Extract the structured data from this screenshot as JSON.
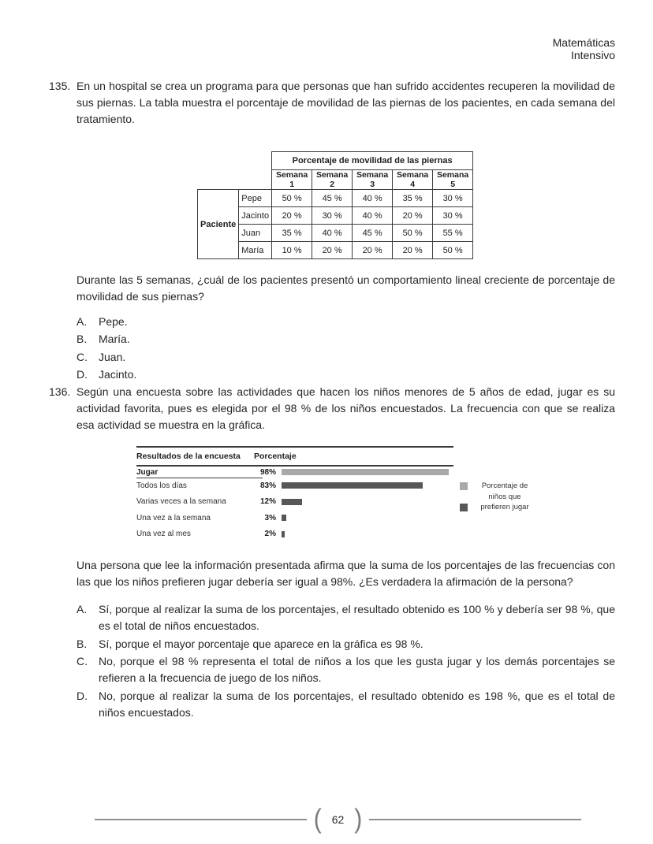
{
  "header": {
    "line1": "Matemáticas",
    "line2": "Intensivo"
  },
  "q135": {
    "number": "135.",
    "intro": "En un hospital se crea un programa para que personas que han sufrido accidentes recuperen la movilidad de sus piernas. La tabla muestra el porcentaje de movilidad de las piernas de los pacientes, en cada semana del tratamiento.",
    "table": {
      "title": "Porcentaje de movilidad de las piernas",
      "row_header": "Paciente",
      "columns": [
        "Semana 1",
        "Semana 2",
        "Semana 3",
        "Semana 4",
        "Semana 5"
      ],
      "rows": [
        {
          "name": "Pepe",
          "values": [
            "50 %",
            "45 %",
            "40 %",
            "35 %",
            "30 %"
          ]
        },
        {
          "name": "Jacinto",
          "values": [
            "20 %",
            "30 %",
            "40 %",
            "20 %",
            "30 %"
          ]
        },
        {
          "name": "Juan",
          "values": [
            "35 %",
            "40 %",
            "45 %",
            "50 %",
            "55 %"
          ]
        },
        {
          "name": "María",
          "values": [
            "10 %",
            "20 %",
            "20 %",
            "20 %",
            "50 %"
          ]
        }
      ]
    },
    "prompt": "Durante las 5 semanas, ¿cuál de los pacientes presentó un comportamiento lineal creciente de porcentaje de movilidad de sus piernas?",
    "options": [
      {
        "letter": "A.",
        "text": "Pepe."
      },
      {
        "letter": "B.",
        "text": "María."
      },
      {
        "letter": "C.",
        "text": "Juan."
      },
      {
        "letter": "D.",
        "text": "Jacinto."
      }
    ]
  },
  "q136": {
    "number": "136.",
    "intro": "Según una encuesta sobre las actividades que hacen los niños menores de 5 años de edad, jugar es su actividad favorita, pues es elegida por el 98 % de los niños encuestados. La frecuencia con que se realiza esa actividad se muestra en la gráfica.",
    "prompt": "Una persona que lee la información presentada afirma que la suma de los porcentajes de las frecuencias con las que los niños prefieren jugar debería ser igual a 98%. ¿Es verdadera la afirmación de la persona?",
    "options": [
      {
        "letter": "A.",
        "text": "Sí, porque al realizar la suma de los porcentajes, el resultado obtenido es 100 % y debería ser 98 %, que es el total de niños encuestados."
      },
      {
        "letter": "B.",
        "text": "Sí, porque el mayor porcentaje que aparece en la gráfica es 98 %."
      },
      {
        "letter": "C.",
        "text": "No, porque el 98 % representa el total de niños a los que les gusta jugar y los demás porcentajes se refieren a la frecuencia de juego de los niños."
      },
      {
        "letter": "D.",
        "text": "No, porque al realizar la suma de los porcentajes, el resultado obtenido es 198 %, que es el total de niños encuestados."
      }
    ]
  },
  "chart_data": {
    "type": "bar",
    "orientation": "horizontal",
    "col1_header": "Resultados de la encuesta",
    "col2_header": "Porcentaje",
    "categories": [
      "Jugar",
      "Todos los días",
      "Varias veces a la semana",
      "Una vez a la semana",
      "Una vez al mes"
    ],
    "values": [
      98,
      83,
      12,
      3,
      2
    ],
    "value_labels": [
      "98%",
      "83%",
      "12%",
      "3%",
      "2%"
    ],
    "bar_colors": [
      "#a9a9a9",
      "#575757",
      "#575757",
      "#575757",
      "#575757"
    ],
    "xlim": [
      0,
      100
    ],
    "legend": {
      "position": "right",
      "lines": [
        "Porcentaje de",
        "niños que",
        "prefieren jugar"
      ],
      "light_color": "#a9a9a9",
      "dark_color": "#575757"
    }
  },
  "footer": {
    "page": "62",
    "left_bracket": "(",
    "right_bracket": ")"
  }
}
